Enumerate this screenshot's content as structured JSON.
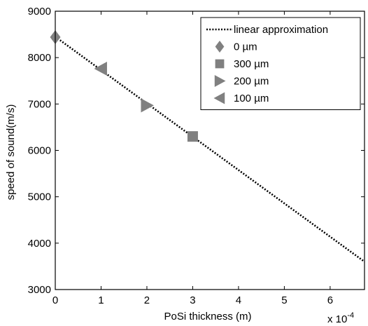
{
  "chart_data": {
    "type": "scatter",
    "title": "",
    "xlabel": "PoSi thickness (m)",
    "ylabel": "speed of sound(m/s)",
    "x_multiplier_label": "x 10",
    "x_multiplier_exponent": "-4",
    "xlim": [
      0,
      6.75
    ],
    "ylim": [
      3000,
      9000
    ],
    "x_scale_factor": 0.0001,
    "xticks": [
      0,
      1,
      2,
      3,
      4,
      5,
      6
    ],
    "yticks": [
      3000,
      4000,
      5000,
      6000,
      7000,
      8000,
      9000
    ],
    "grid": false,
    "legend_position": "top-right",
    "series": [
      {
        "name": "linear approximation",
        "style": "dotted-line",
        "color": "#000000",
        "x": [
          0,
          6.75
        ],
        "y": [
          8450,
          3600
        ]
      },
      {
        "name": "0 µm",
        "marker": "diamond",
        "color": "#808080",
        "x": [
          0
        ],
        "y": [
          8440
        ]
      },
      {
        "name": "300 µm",
        "marker": "square",
        "color": "#808080",
        "x": [
          3
        ],
        "y": [
          6300
        ]
      },
      {
        "name": "200 µm",
        "marker": "triangle-right",
        "color": "#808080",
        "x": [
          2
        ],
        "y": [
          6970
        ]
      },
      {
        "name": "100 µm",
        "marker": "triangle-left",
        "color": "#808080",
        "x": [
          1
        ],
        "y": [
          7760
        ]
      }
    ]
  }
}
